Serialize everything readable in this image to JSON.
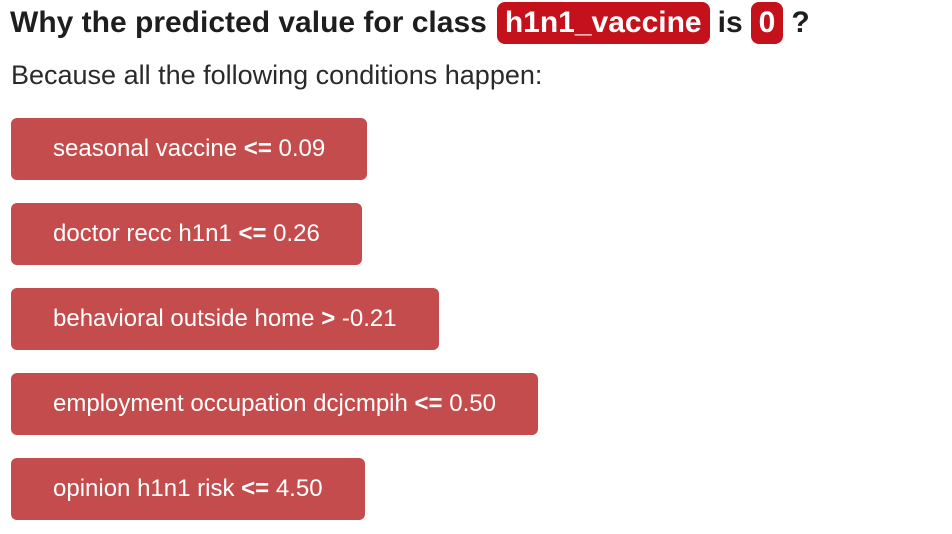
{
  "heading": {
    "prefix": "Why the predicted value for class",
    "class_name": "h1n1_vaccine",
    "middle": "is",
    "predicted_value": "0",
    "suffix": "?"
  },
  "subtitle": "Because all the following conditions happen:",
  "conditions": [
    {
      "feature": "seasonal vaccine",
      "operator": "<=",
      "value": "0.09"
    },
    {
      "feature": "doctor recc h1n1",
      "operator": "<=",
      "value": "0.26"
    },
    {
      "feature": "behavioral outside home",
      "operator": ">",
      "value": "-0.21"
    },
    {
      "feature": "employment occupation dcjcmpih",
      "operator": "<=",
      "value": "0.50"
    },
    {
      "feature": "opinion h1n1 risk",
      "operator": "<=",
      "value": "4.50"
    }
  ],
  "colors": {
    "badge": "#c4111b",
    "condition_box": "#c44c4c",
    "condition_text": "#ffffff"
  }
}
